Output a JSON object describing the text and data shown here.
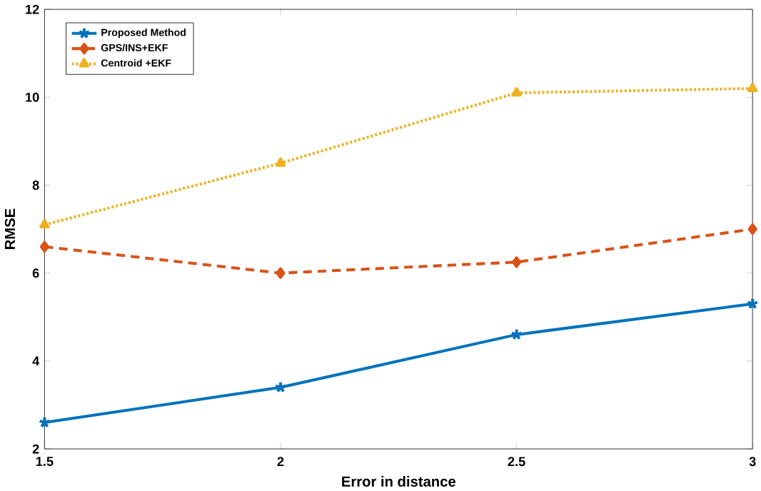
{
  "chart_data": {
    "type": "line",
    "xlabel": "Error in distance",
    "ylabel": "RMSE",
    "x": [
      1.5,
      2,
      2.5,
      3
    ],
    "series": [
      {
        "name": "Proposed Method",
        "color": "#0072bd",
        "values": [
          2.6,
          3.4,
          4.6,
          5.3
        ],
        "marker": "cross",
        "line_style": "solid"
      },
      {
        "name": "GPS/INS+EKF",
        "color": "#d95319",
        "values": [
          6.6,
          6.0,
          6.25,
          7.0
        ],
        "marker": "diamond",
        "line_style": "dashed"
      },
      {
        "name": "Centroid +EKF",
        "color": "#edb120",
        "values": [
          7.1,
          8.5,
          10.1,
          10.2
        ],
        "marker": "triangle",
        "line_style": "dotted"
      }
    ],
    "xlim": [
      1.5,
      3
    ],
    "ylim": [
      2,
      12
    ],
    "xticks": [
      1.5,
      2,
      2.5,
      3
    ],
    "yticks": [
      2,
      4,
      6,
      8,
      10,
      12
    ],
    "legend": "top left",
    "grid": false
  }
}
